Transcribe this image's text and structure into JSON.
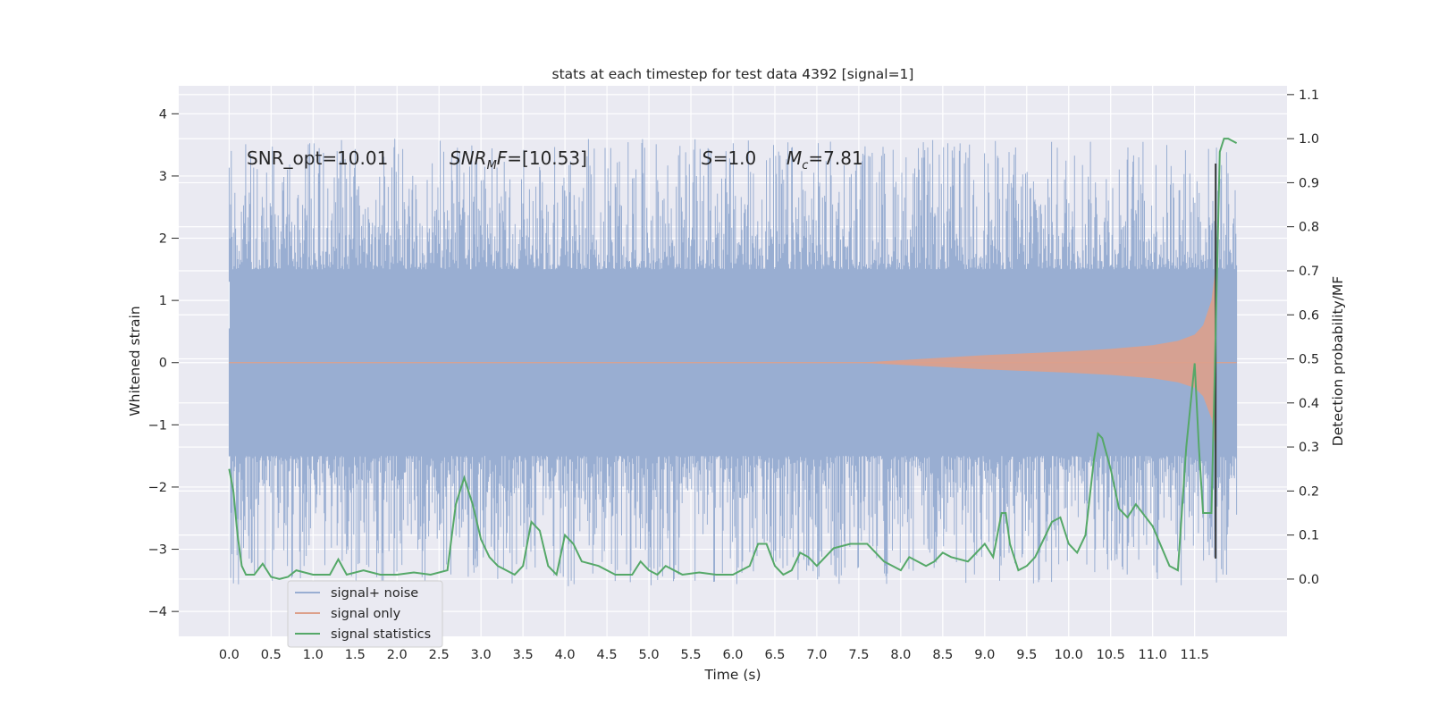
{
  "chart_data": {
    "type": "line",
    "title": "stats at each timestep for test data 4392 [signal=1]",
    "xlabel": "Time (s)",
    "ylabel": "Whitened strain",
    "ylabel_right": "Detection probability/MF",
    "xlim": [
      -0.6,
      12.6
    ],
    "ylim": [
      -4.4,
      4.45
    ],
    "ylim_right": [
      -0.13,
      1.12
    ],
    "x_ticks": [
      "0.0",
      "0.5",
      "1.0",
      "1.5",
      "2.0",
      "2.5",
      "3.0",
      "3.5",
      "4.0",
      "4.5",
      "5.0",
      "5.5",
      "6.0",
      "6.5",
      "7.0",
      "7.5",
      "8.0",
      "8.5",
      "9.0",
      "9.5",
      "10.0",
      "10.5",
      "11.0",
      "11.5"
    ],
    "y_ticks": [
      "4",
      "3",
      "2",
      "1",
      "0",
      "−1",
      "−2",
      "−3",
      "−4"
    ],
    "y_ticks_right": [
      "1.1",
      "1.0",
      "0.9",
      "0.8",
      "0.7",
      "0.6",
      "0.5",
      "0.4",
      "0.3",
      "0.2",
      "0.1",
      "0.0"
    ],
    "grid": true,
    "legend_position": "lower-left",
    "colors": {
      "background": "#eaeaf2",
      "grid": "#ffffff",
      "noise": "#99aed2",
      "signal": "#dda08b",
      "stats": "#55a868",
      "vline": "#3a3a3a"
    },
    "annotations": {
      "snr_opt": "SNR_opt=10.01",
      "snr_mf_sym": "SNR",
      "snr_mf_sub": "M",
      "snr_mf_sym2": "F",
      "snr_mf_val": "=[10.53]",
      "s_sym": "S",
      "s_val": "=1.0",
      "mc_sym": "M",
      "mc_sub": "c",
      "mc_val": "=7.81"
    },
    "series": [
      {
        "name": "signal+ noise",
        "noise_band": [
          -1.3,
          1.3
        ],
        "t_range": [
          0.0,
          12.0
        ]
      },
      {
        "name": "signal only",
        "envelope": {
          "t": [
            7.5,
            8.0,
            9.0,
            10.0,
            10.5,
            11.0,
            11.3,
            11.5,
            11.6,
            11.7,
            11.75
          ],
          "amp": [
            0.0,
            0.04,
            0.12,
            0.18,
            0.22,
            0.28,
            0.35,
            0.45,
            0.6,
            1.0,
            1.55
          ]
        }
      },
      {
        "name": "signal statistics",
        "x": [
          0.0,
          0.05,
          0.1,
          0.15,
          0.2,
          0.3,
          0.4,
          0.5,
          0.6,
          0.7,
          0.8,
          1.0,
          1.2,
          1.3,
          1.4,
          1.6,
          1.8,
          2.0,
          2.2,
          2.4,
          2.6,
          2.7,
          2.8,
          2.9,
          3.0,
          3.1,
          3.2,
          3.4,
          3.5,
          3.6,
          3.7,
          3.8,
          3.9,
          4.0,
          4.1,
          4.2,
          4.4,
          4.6,
          4.8,
          4.9,
          5.0,
          5.1,
          5.2,
          5.4,
          5.6,
          5.8,
          6.0,
          6.2,
          6.3,
          6.4,
          6.5,
          6.6,
          6.7,
          6.8,
          6.9,
          7.0,
          7.1,
          7.2,
          7.4,
          7.6,
          7.8,
          8.0,
          8.1,
          8.2,
          8.3,
          8.4,
          8.5,
          8.6,
          8.8,
          9.0,
          9.1,
          9.2,
          9.25,
          9.3,
          9.4,
          9.5,
          9.6,
          9.8,
          9.9,
          10.0,
          10.1,
          10.2,
          10.3,
          10.35,
          10.4,
          10.5,
          10.6,
          10.7,
          10.8,
          11.0,
          11.2,
          11.3,
          11.4,
          11.5,
          11.55,
          11.6,
          11.7,
          11.8,
          11.85,
          11.9,
          12.0
        ],
        "y": [
          0.25,
          0.2,
          0.1,
          0.03,
          0.01,
          0.01,
          0.035,
          0.005,
          0.0,
          0.005,
          0.02,
          0.01,
          0.01,
          0.045,
          0.01,
          0.02,
          0.01,
          0.01,
          0.015,
          0.01,
          0.02,
          0.17,
          0.23,
          0.17,
          0.09,
          0.05,
          0.03,
          0.01,
          0.03,
          0.13,
          0.11,
          0.03,
          0.01,
          0.1,
          0.08,
          0.04,
          0.03,
          0.01,
          0.01,
          0.04,
          0.02,
          0.01,
          0.03,
          0.01,
          0.015,
          0.01,
          0.01,
          0.03,
          0.08,
          0.08,
          0.03,
          0.01,
          0.02,
          0.06,
          0.05,
          0.03,
          0.05,
          0.07,
          0.08,
          0.08,
          0.04,
          0.02,
          0.05,
          0.04,
          0.03,
          0.04,
          0.06,
          0.05,
          0.04,
          0.08,
          0.05,
          0.15,
          0.15,
          0.08,
          0.02,
          0.03,
          0.05,
          0.13,
          0.14,
          0.08,
          0.06,
          0.1,
          0.27,
          0.33,
          0.32,
          0.25,
          0.16,
          0.14,
          0.17,
          0.12,
          0.03,
          0.02,
          0.3,
          0.49,
          0.3,
          0.15,
          0.15,
          0.97,
          1.0,
          1.0,
          0.99
        ]
      }
    ]
  }
}
